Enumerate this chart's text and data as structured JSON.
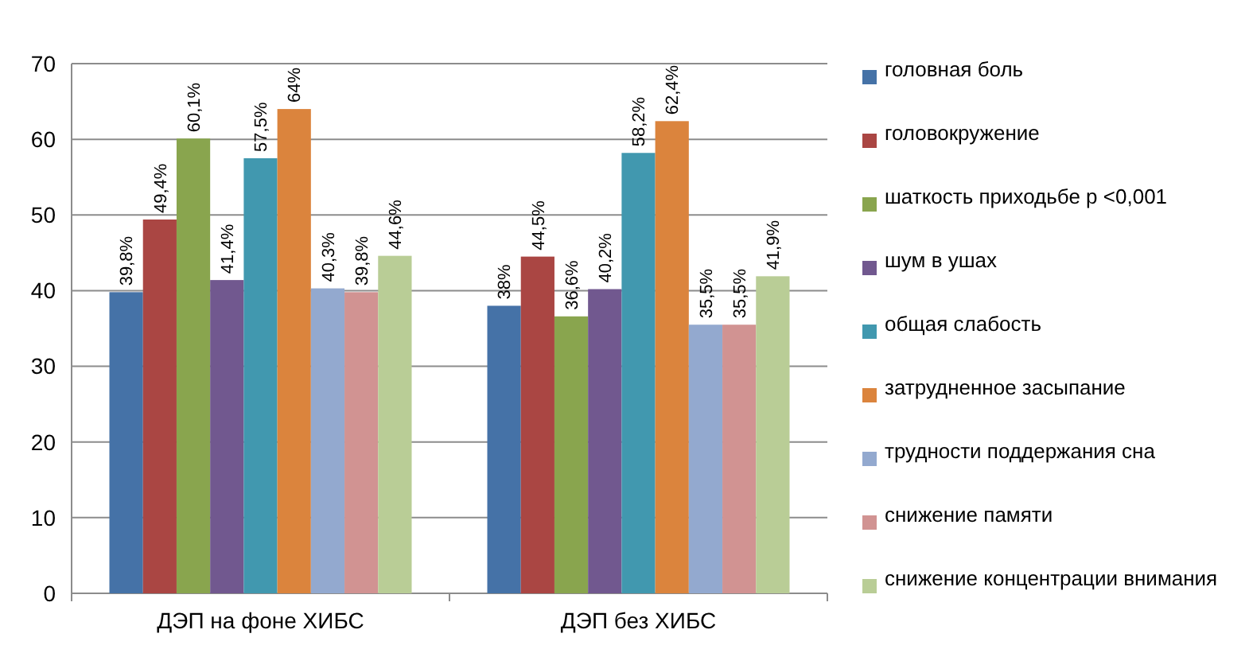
{
  "chart_data": {
    "type": "bar",
    "categories": [
      "ДЭП на фоне ХИБС",
      "ДЭП без ХИБС"
    ],
    "series": [
      {
        "name": "головная боль",
        "color": "#4572a7",
        "values": [
          39.8,
          38
        ],
        "value_labels": [
          "39,8%",
          "38%"
        ]
      },
      {
        "name": "головокружение",
        "color": "#aa4643",
        "values": [
          49.4,
          44.5
        ],
        "value_labels": [
          "49,4%",
          "44,5%"
        ]
      },
      {
        "name": "шаткость приходьбе р <0,001",
        "color": "#89a54e",
        "values": [
          60.1,
          36.6
        ],
        "value_labels": [
          "60,1%",
          "36,6%"
        ]
      },
      {
        "name": "шум в ушах",
        "color": "#71588f",
        "values": [
          41.4,
          40.2
        ],
        "value_labels": [
          "41,4%",
          "40,2%"
        ]
      },
      {
        "name": "общая слабость",
        "color": "#4198af",
        "values": [
          57.5,
          58.2
        ],
        "value_labels": [
          "57,5%",
          "58,2%"
        ]
      },
      {
        "name": "затрудненное засыпание",
        "color": "#db843d",
        "values": [
          64,
          62.4
        ],
        "value_labels": [
          "64%",
          "62,4%"
        ]
      },
      {
        "name": "трудности поддержания сна",
        "color": "#93a9cf",
        "values": [
          40.3,
          35.5
        ],
        "value_labels": [
          "40,3%",
          "35,5%"
        ]
      },
      {
        "name": "снижение памяти",
        "color": "#d19392",
        "values": [
          39.8,
          35.5
        ],
        "value_labels": [
          "39,8%",
          "35,5%"
        ]
      },
      {
        "name": "снижение концентрации внимания",
        "color": "#b9cd96",
        "values": [
          44.6,
          41.9
        ],
        "value_labels": [
          "44,6%",
          "41,9%"
        ]
      }
    ],
    "ylim": [
      0,
      70
    ],
    "yticks": [
      0,
      10,
      20,
      30,
      40,
      50,
      60,
      70
    ],
    "grid": "y",
    "legend": "right"
  }
}
